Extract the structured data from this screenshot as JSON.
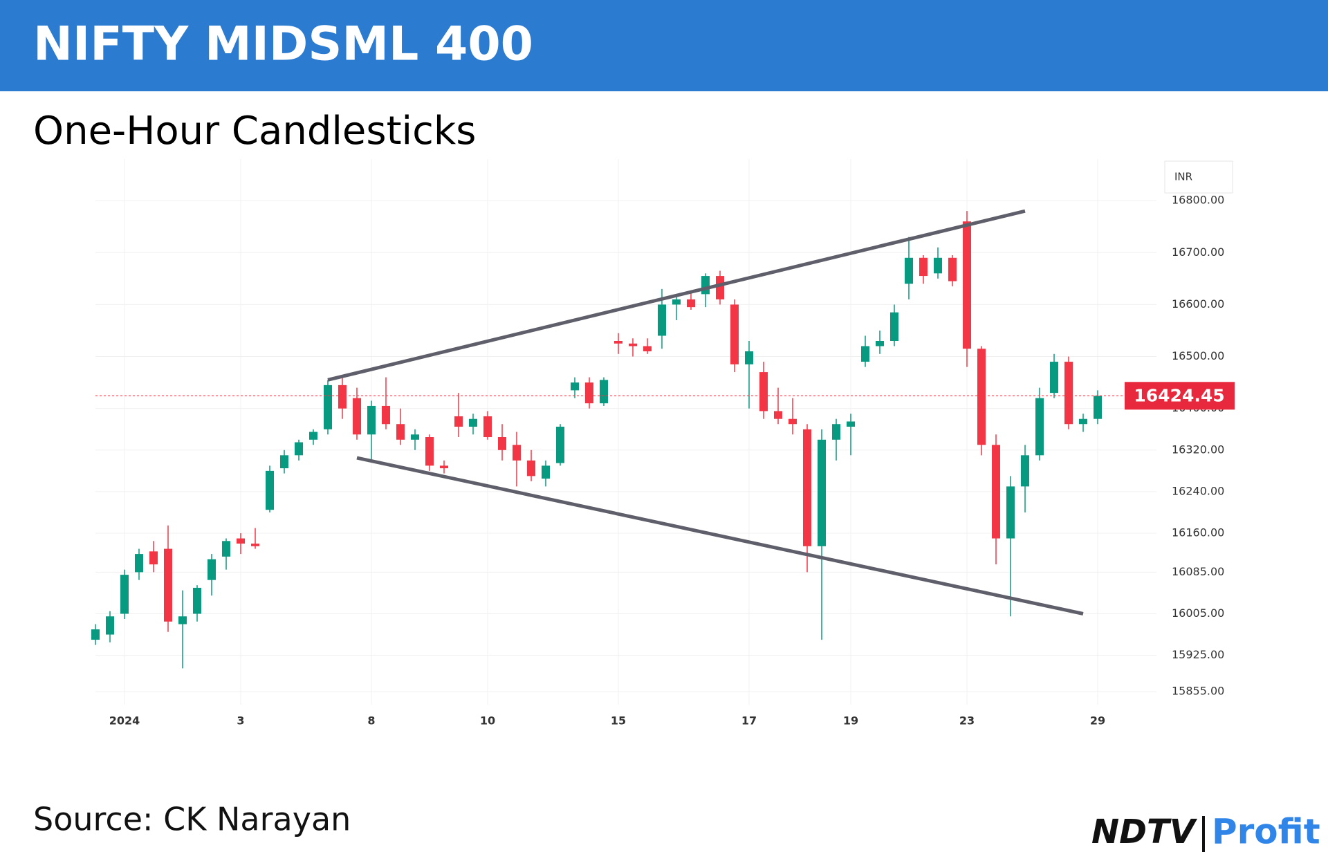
{
  "chart_data": {
    "type": "candlestick",
    "title": "NIFTY MIDSML 400",
    "subtitle": "One-Hour Candlesticks",
    "source": "Source: CK Narayan",
    "currency": "INR",
    "categories": [
      null,
      null,
      "2024",
      null,
      null,
      null,
      null,
      null,
      null,
      null,
      "3",
      null,
      null,
      null,
      null,
      null,
      null,
      null,
      null,
      "8",
      null,
      null,
      null,
      null,
      null,
      null,
      null,
      "10",
      null,
      null,
      null,
      null,
      null,
      null,
      null,
      null,
      "15",
      null,
      null,
      null,
      null,
      null,
      null,
      null,
      null,
      "17",
      null,
      null,
      null,
      null,
      null,
      null,
      "19",
      null,
      null,
      null,
      null,
      null,
      null,
      null,
      "23",
      null,
      null,
      null,
      null,
      null,
      null,
      null,
      null,
      "29"
    ],
    "open": [
      15955,
      15965,
      16005,
      16085,
      16125,
      16130,
      15985,
      16005,
      16070,
      16115,
      16150,
      16140,
      16205,
      16285,
      16310,
      16340,
      16360,
      16445,
      16420,
      16350,
      16405,
      16370,
      16340,
      16345,
      16290,
      16385,
      16365,
      16385,
      16345,
      16330,
      16300,
      16265,
      16295,
      16435,
      16450,
      16410,
      16530,
      16525,
      16520,
      16540,
      16600,
      16610,
      16620,
      16655,
      16600,
      16485,
      16470,
      16395,
      16380,
      16360,
      16135,
      16340,
      16365,
      16490,
      16520,
      16530,
      16640,
      16690,
      16660,
      16690,
      16760,
      16515,
      16330,
      16150,
      16250,
      16310,
      16430,
      16490,
      16370,
      16380
    ],
    "high": [
      15985,
      16010,
      16090,
      16130,
      16145,
      16175,
      16050,
      16060,
      16120,
      16150,
      16160,
      16170,
      16290,
      16320,
      16340,
      16360,
      16455,
      16460,
      16440,
      16415,
      16460,
      16400,
      16360,
      16350,
      16300,
      16430,
      16390,
      16395,
      16370,
      16355,
      16320,
      16300,
      16370,
      16460,
      16460,
      16460,
      16545,
      16535,
      16535,
      16630,
      16620,
      16625,
      16660,
      16665,
      16610,
      16530,
      16490,
      16440,
      16420,
      16370,
      16360,
      16380,
      16390,
      16540,
      16550,
      16600,
      16730,
      16695,
      16710,
      16695,
      16780,
      16520,
      16350,
      16270,
      16330,
      16440,
      16505,
      16500,
      16390,
      16435
    ],
    "low": [
      15945,
      15950,
      15995,
      16070,
      16085,
      15970,
      15900,
      15990,
      16040,
      16090,
      16120,
      16130,
      16200,
      16275,
      16300,
      16330,
      16350,
      16380,
      16340,
      16300,
      16360,
      16330,
      16320,
      16280,
      16275,
      16345,
      16350,
      16340,
      16300,
      16250,
      16260,
      16250,
      16290,
      16420,
      16400,
      16405,
      16505,
      16500,
      16505,
      16515,
      16570,
      16590,
      16595,
      16600,
      16470,
      16400,
      16380,
      16370,
      16350,
      16085,
      15955,
      16300,
      16310,
      16480,
      16505,
      16520,
      16610,
      16640,
      16650,
      16635,
      16480,
      16310,
      16100,
      16000,
      16200,
      16300,
      16420,
      16360,
      16355,
      16370
    ],
    "close": [
      15975,
      16000,
      16080,
      16120,
      16100,
      15990,
      16000,
      16055,
      16110,
      16145,
      16140,
      16135,
      16280,
      16310,
      16335,
      16355,
      16445,
      16400,
      16350,
      16405,
      16370,
      16340,
      16350,
      16290,
      16285,
      16365,
      16380,
      16345,
      16320,
      16300,
      16270,
      16290,
      16365,
      16450,
      16410,
      16455,
      16525,
      16520,
      16510,
      16600,
      16610,
      16595,
      16655,
      16610,
      16485,
      16510,
      16395,
      16380,
      16370,
      16135,
      16340,
      16370,
      16375,
      16520,
      16530,
      16585,
      16690,
      16655,
      16690,
      16645,
      16515,
      16330,
      16150,
      16250,
      16310,
      16420,
      16490,
      16370,
      16380,
      16424.45
    ],
    "up_color": "#089981",
    "down_color": "#f23645",
    "last_price": 16424.45,
    "ylim": [
      15830,
      16880
    ],
    "yticks": [
      {
        "value": 15855,
        "label": "15855.00"
      },
      {
        "value": 15925,
        "label": "15925.00"
      },
      {
        "value": 16005,
        "label": "16005.00"
      },
      {
        "value": 16085,
        "label": "16085.00"
      },
      {
        "value": 16160,
        "label": "16160.00"
      },
      {
        "value": 16240,
        "label": "16240.00"
      },
      {
        "value": 16320,
        "label": "16320.00"
      },
      {
        "value": 16400,
        "label": "16400.00"
      },
      {
        "value": 16500,
        "label": "16500.00"
      },
      {
        "value": 16600,
        "label": "16600.00"
      },
      {
        "value": 16700,
        "label": "16700.00"
      },
      {
        "value": 16800,
        "label": "16800.00"
      }
    ],
    "grid": true,
    "trendlines": [
      {
        "x": [
          16,
          64
        ],
        "y": [
          16455,
          16780
        ],
        "color": "#5f5f6b"
      },
      {
        "x": [
          18,
          68
        ],
        "y": [
          16305,
          16005
        ],
        "color": "#5f5f6b"
      }
    ]
  },
  "logo": {
    "brand": "NDTV",
    "product": "Profit"
  }
}
